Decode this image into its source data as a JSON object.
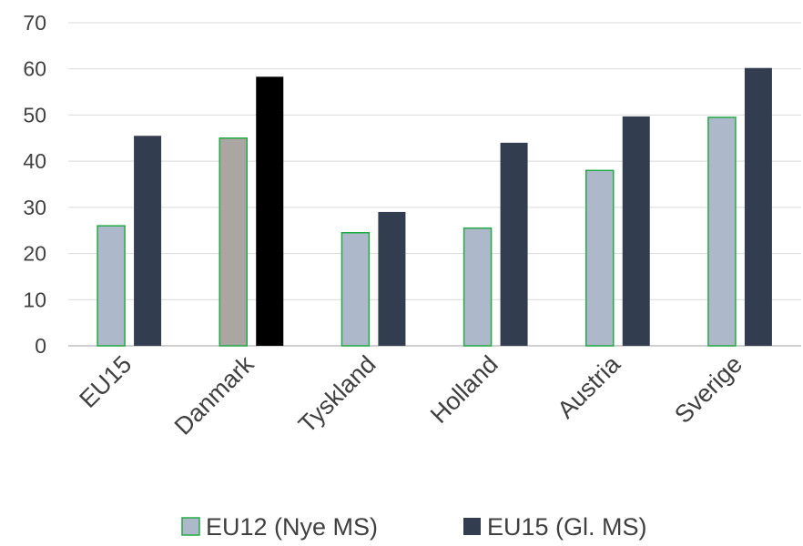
{
  "chart_data": {
    "type": "bar",
    "categories": [
      "EU15",
      "Danmark",
      "Tyskland",
      "Holland",
      "Austria",
      "Sverige"
    ],
    "series": [
      {
        "name": "EU12 (Nye MS)",
        "values": [
          26,
          45,
          24.5,
          25.5,
          38,
          49.5
        ],
        "color": "#adb9ca",
        "border": "#22aa44"
      },
      {
        "name": "EU15 (Gl. MS)",
        "values": [
          45.5,
          58.3,
          29,
          44,
          49.7,
          60.2
        ],
        "color": "#323e4f"
      }
    ],
    "highlight": {
      "category": "Danmark",
      "colors": [
        "#aba6a2",
        "#000000"
      ]
    },
    "ylim": [
      0,
      70
    ],
    "yticks": [
      "0",
      "10",
      "20",
      "30",
      "40",
      "50",
      "60",
      "70"
    ],
    "grid": true,
    "legend_position": "bottom",
    "colors": {
      "grid": "#d9d9d9",
      "axis": "#bfbfbf",
      "text": "#404040"
    }
  }
}
